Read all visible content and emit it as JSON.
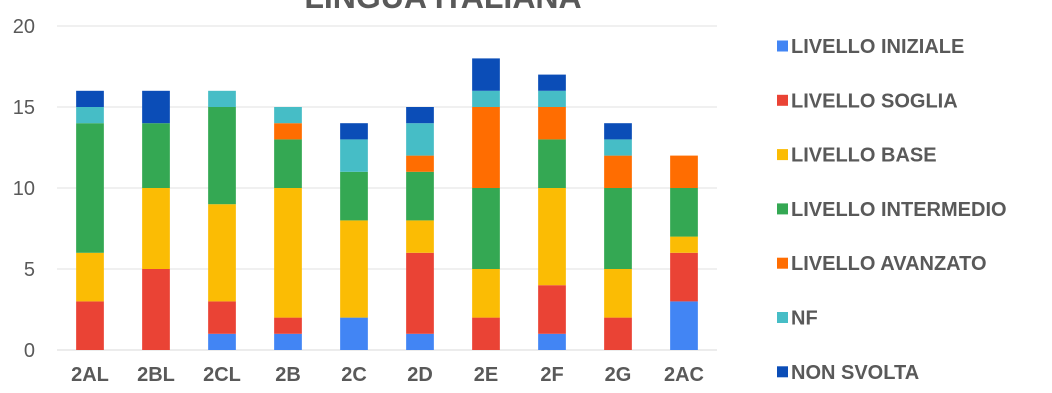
{
  "chart_data": {
    "type": "bar",
    "stacked": true,
    "title": "LINGUA ITALIANA",
    "categories": [
      "2AL",
      "2BL",
      "2CL",
      "2B",
      "2C",
      "2D",
      "2E",
      "2F",
      "2G",
      "2AC"
    ],
    "ylim": [
      0,
      20
    ],
    "yticks": [
      0,
      5,
      10,
      15,
      20
    ],
    "grid": true,
    "legend_position": "right",
    "series": [
      {
        "name": "LIVELLO INIZIALE",
        "color": "#4285F4",
        "values": [
          0,
          0,
          1,
          1,
          2,
          1,
          0,
          1,
          0,
          3
        ]
      },
      {
        "name": "LIVELLO SOGLIA",
        "color": "#EA4335",
        "values": [
          3,
          5,
          2,
          1,
          0,
          5,
          2,
          3,
          2,
          3
        ]
      },
      {
        "name": "LIVELLO BASE",
        "color": "#FBBC04",
        "values": [
          3,
          5,
          6,
          8,
          6,
          2,
          3,
          6,
          3,
          1
        ]
      },
      {
        "name": "LIVELLO INTERMEDIO",
        "color": "#34A853",
        "values": [
          8,
          4,
          6,
          3,
          3,
          3,
          5,
          3,
          5,
          3
        ]
      },
      {
        "name": "LIVELLO AVANZATO",
        "color": "#FF6D01",
        "values": [
          0,
          0,
          0,
          1,
          0,
          1,
          5,
          2,
          2,
          2
        ]
      },
      {
        "name": "NF",
        "color": "#46BDC6",
        "values": [
          1,
          0,
          1,
          1,
          2,
          2,
          1,
          1,
          1,
          0
        ]
      },
      {
        "name": "NON SVOLTA",
        "color": "#0B4DB7",
        "values": [
          1,
          2,
          0,
          0,
          1,
          1,
          2,
          1,
          1,
          0
        ]
      }
    ]
  }
}
